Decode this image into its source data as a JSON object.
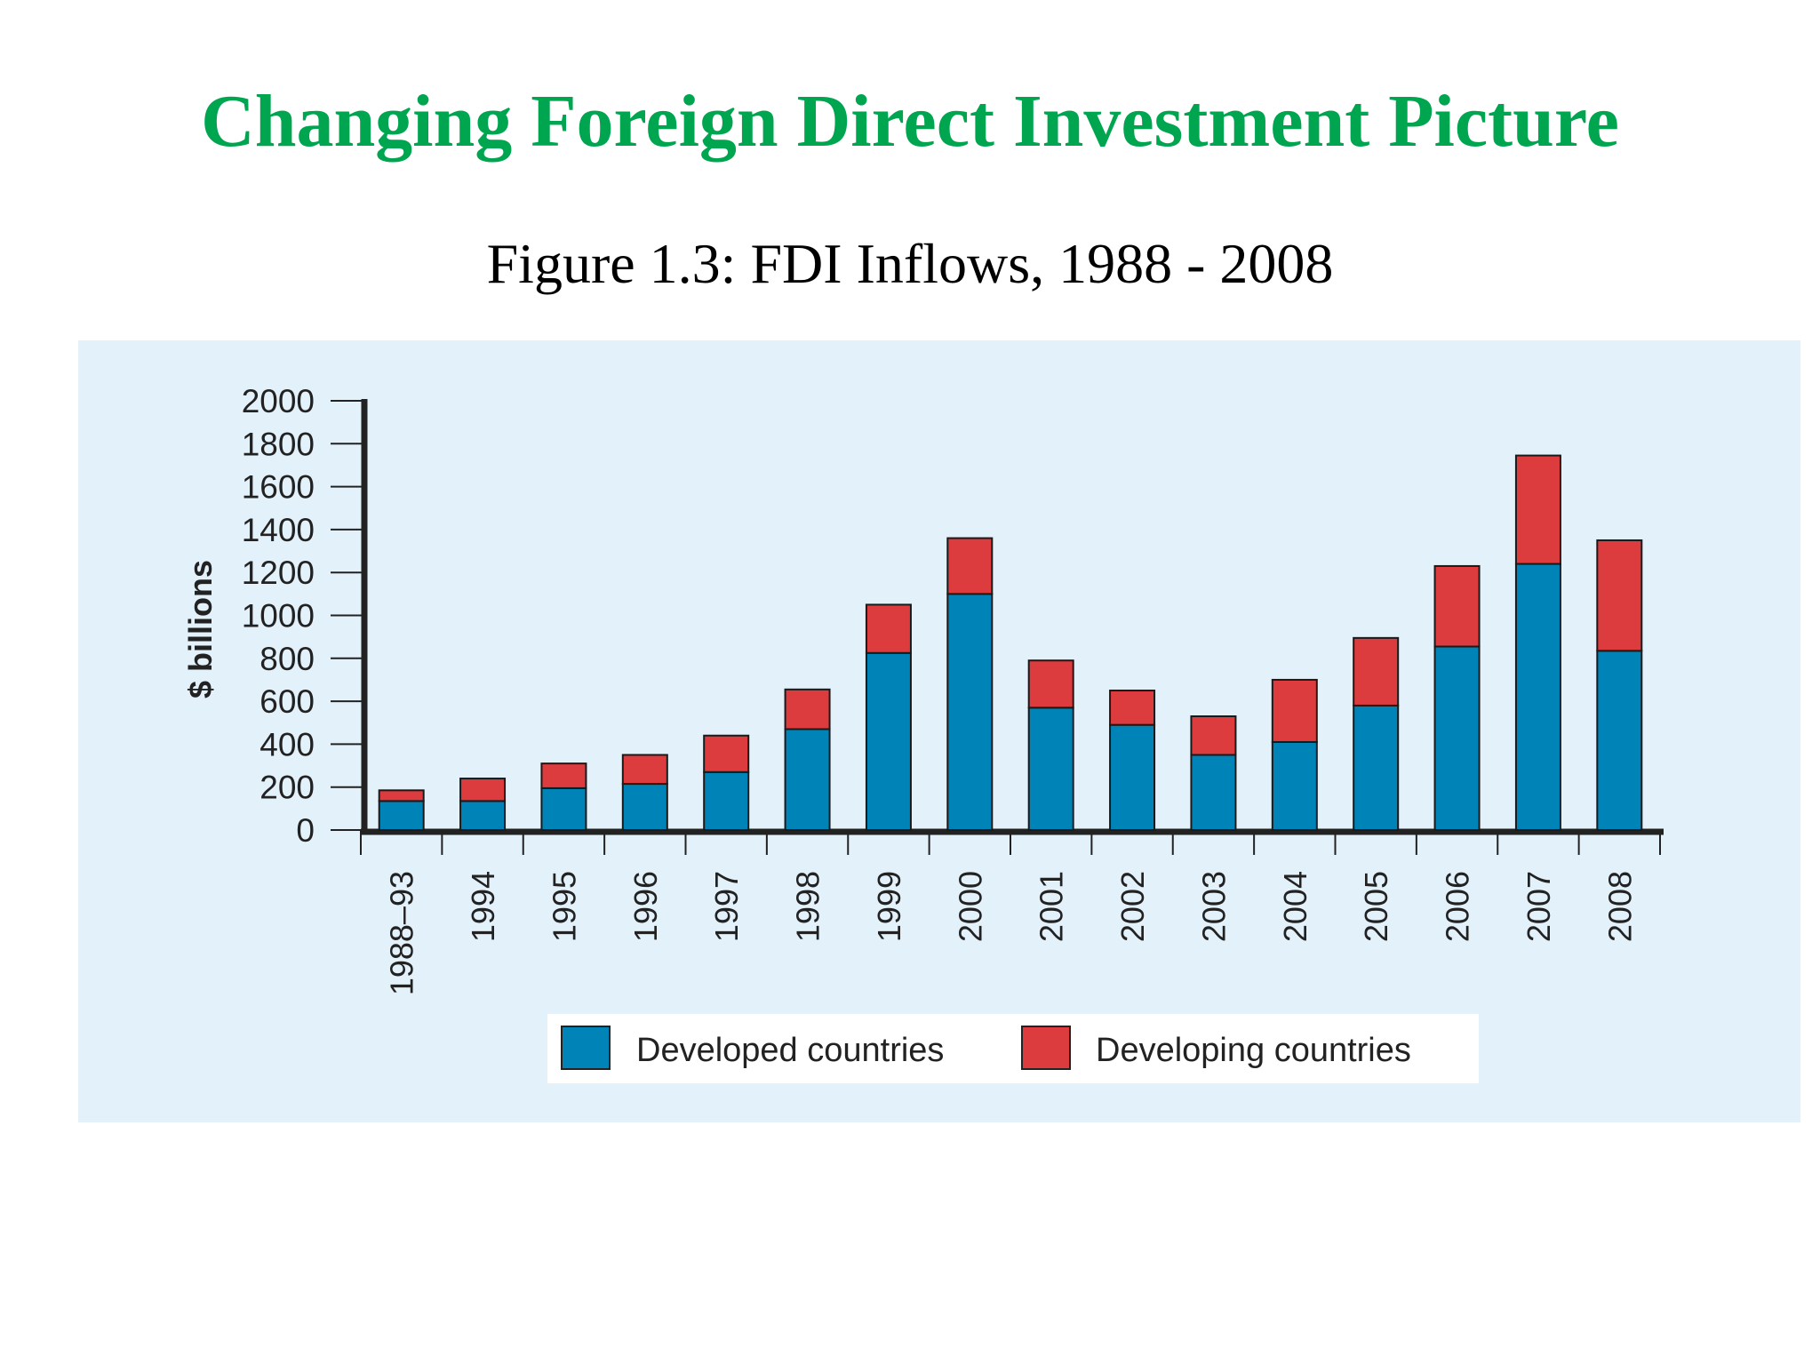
{
  "slide": {
    "title": "Changing Foreign Direct Investment Picture",
    "subtitle": "Figure 1.3: FDI Inflows, 1988 - 2008"
  },
  "colors": {
    "title": "#00a550",
    "panel_background": "#e3f1fa",
    "developed": "#0083b7",
    "developing": "#dc3c3e",
    "axis": "#222222"
  },
  "chart_data": {
    "type": "bar",
    "stacked": true,
    "ylabel": "$ billions",
    "ylim": [
      0,
      2000
    ],
    "yticks": [
      0,
      200,
      400,
      600,
      800,
      1000,
      1200,
      1400,
      1600,
      1800,
      2000
    ],
    "categories": [
      "1988–93",
      "1994",
      "1995",
      "1996",
      "1997",
      "1998",
      "1999",
      "2000",
      "2001",
      "2002",
      "2003",
      "2004",
      "2005",
      "2006",
      "2007",
      "2008"
    ],
    "series": [
      {
        "name": "Developed countries",
        "color": "#0083b7",
        "values": [
          135,
          135,
          195,
          215,
          270,
          470,
          825,
          1100,
          570,
          490,
          350,
          410,
          580,
          855,
          1240,
          835
        ]
      },
      {
        "name": "Developing countries",
        "color": "#dc3c3e",
        "values": [
          50,
          105,
          115,
          135,
          170,
          185,
          225,
          260,
          220,
          160,
          180,
          290,
          315,
          375,
          505,
          515
        ]
      }
    ],
    "legend_position": "bottom",
    "grid": false
  }
}
